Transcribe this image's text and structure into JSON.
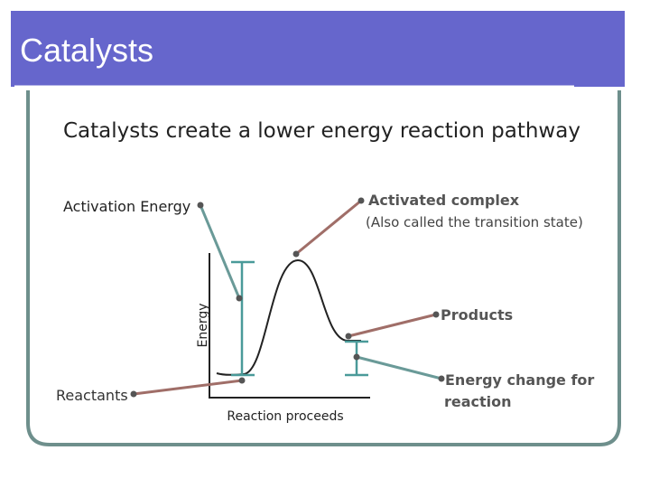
{
  "header": {
    "title": "Catalysts"
  },
  "subtitle": "Catalysts create a lower energy reaction pathway",
  "labels": {
    "activation_energy": "Activation Energy",
    "activated_complex": "Activated complex",
    "transition_state": "(Also called the transition state)",
    "energy_axis": "Energy",
    "products": "Products",
    "reactants": "Reactants",
    "reaction_axis": "Reaction proceeds",
    "energy_change": [
      "Energy change for",
      "reaction"
    ]
  }
}
